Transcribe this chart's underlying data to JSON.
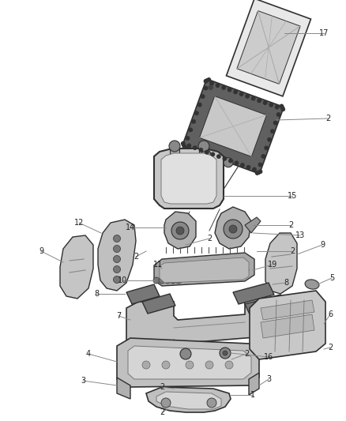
{
  "bg_color": "#f0f0f0",
  "fig_width": 4.38,
  "fig_height": 5.33,
  "dpi": 100,
  "line_color": "#888888",
  "label_color": "#222222",
  "label_fontsize": 7.0,
  "part_color": "#303030",
  "part_fill": "#d8d8d8",
  "part_fill_dark": "#a0a0a0",
  "part_fill_light": "#e8e8e8"
}
